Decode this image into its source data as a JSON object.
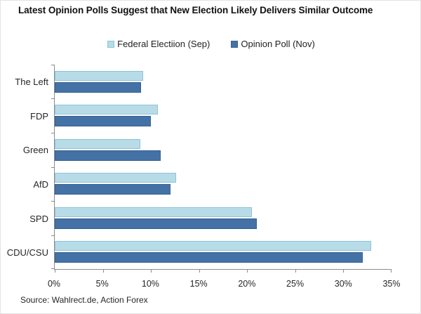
{
  "title": "Latest Opinion Polls Suggest that New Election Likely Delivers Similar Outcome",
  "source": "Source: Wahlrect.de, Action Forex",
  "colors": {
    "background": "#ffffff",
    "axis": "#8c8c8c",
    "text": "#262626",
    "series_light_fill": "#b7dce8",
    "series_light_border": "#8dc3d8",
    "series_dark_fill": "#4472a6",
    "series_dark_border": "#35618e"
  },
  "chart_data": {
    "type": "bar",
    "orientation": "horizontal",
    "title": "Latest Opinion Polls Suggest that New Election Likely Delivers Similar Outcome",
    "categories": [
      "The Left",
      "FDP",
      "Green",
      "AfD",
      "SPD",
      "CDU/CSU"
    ],
    "series": [
      {
        "name": "Federal Electiion (Sep)",
        "color": "#b7dce8",
        "border": "#8dc3d8",
        "values": [
          9.2,
          10.7,
          8.9,
          12.6,
          20.5,
          32.9
        ]
      },
      {
        "name": "Opinion Poll (Nov)",
        "color": "#4472a6",
        "border": "#35618e",
        "values": [
          9,
          10,
          11,
          12,
          21,
          32
        ]
      }
    ],
    "xlabel": "",
    "ylabel": "",
    "xlim": [
      0,
      35
    ],
    "x_ticks": [
      "0%",
      "5%",
      "10%",
      "15%",
      "20%",
      "25%",
      "30%",
      "35%"
    ],
    "x_tick_values": [
      0,
      5,
      10,
      15,
      20,
      25,
      30,
      35
    ],
    "grid": false,
    "legend_position": "top-center",
    "category_order": "top-to-bottom"
  }
}
